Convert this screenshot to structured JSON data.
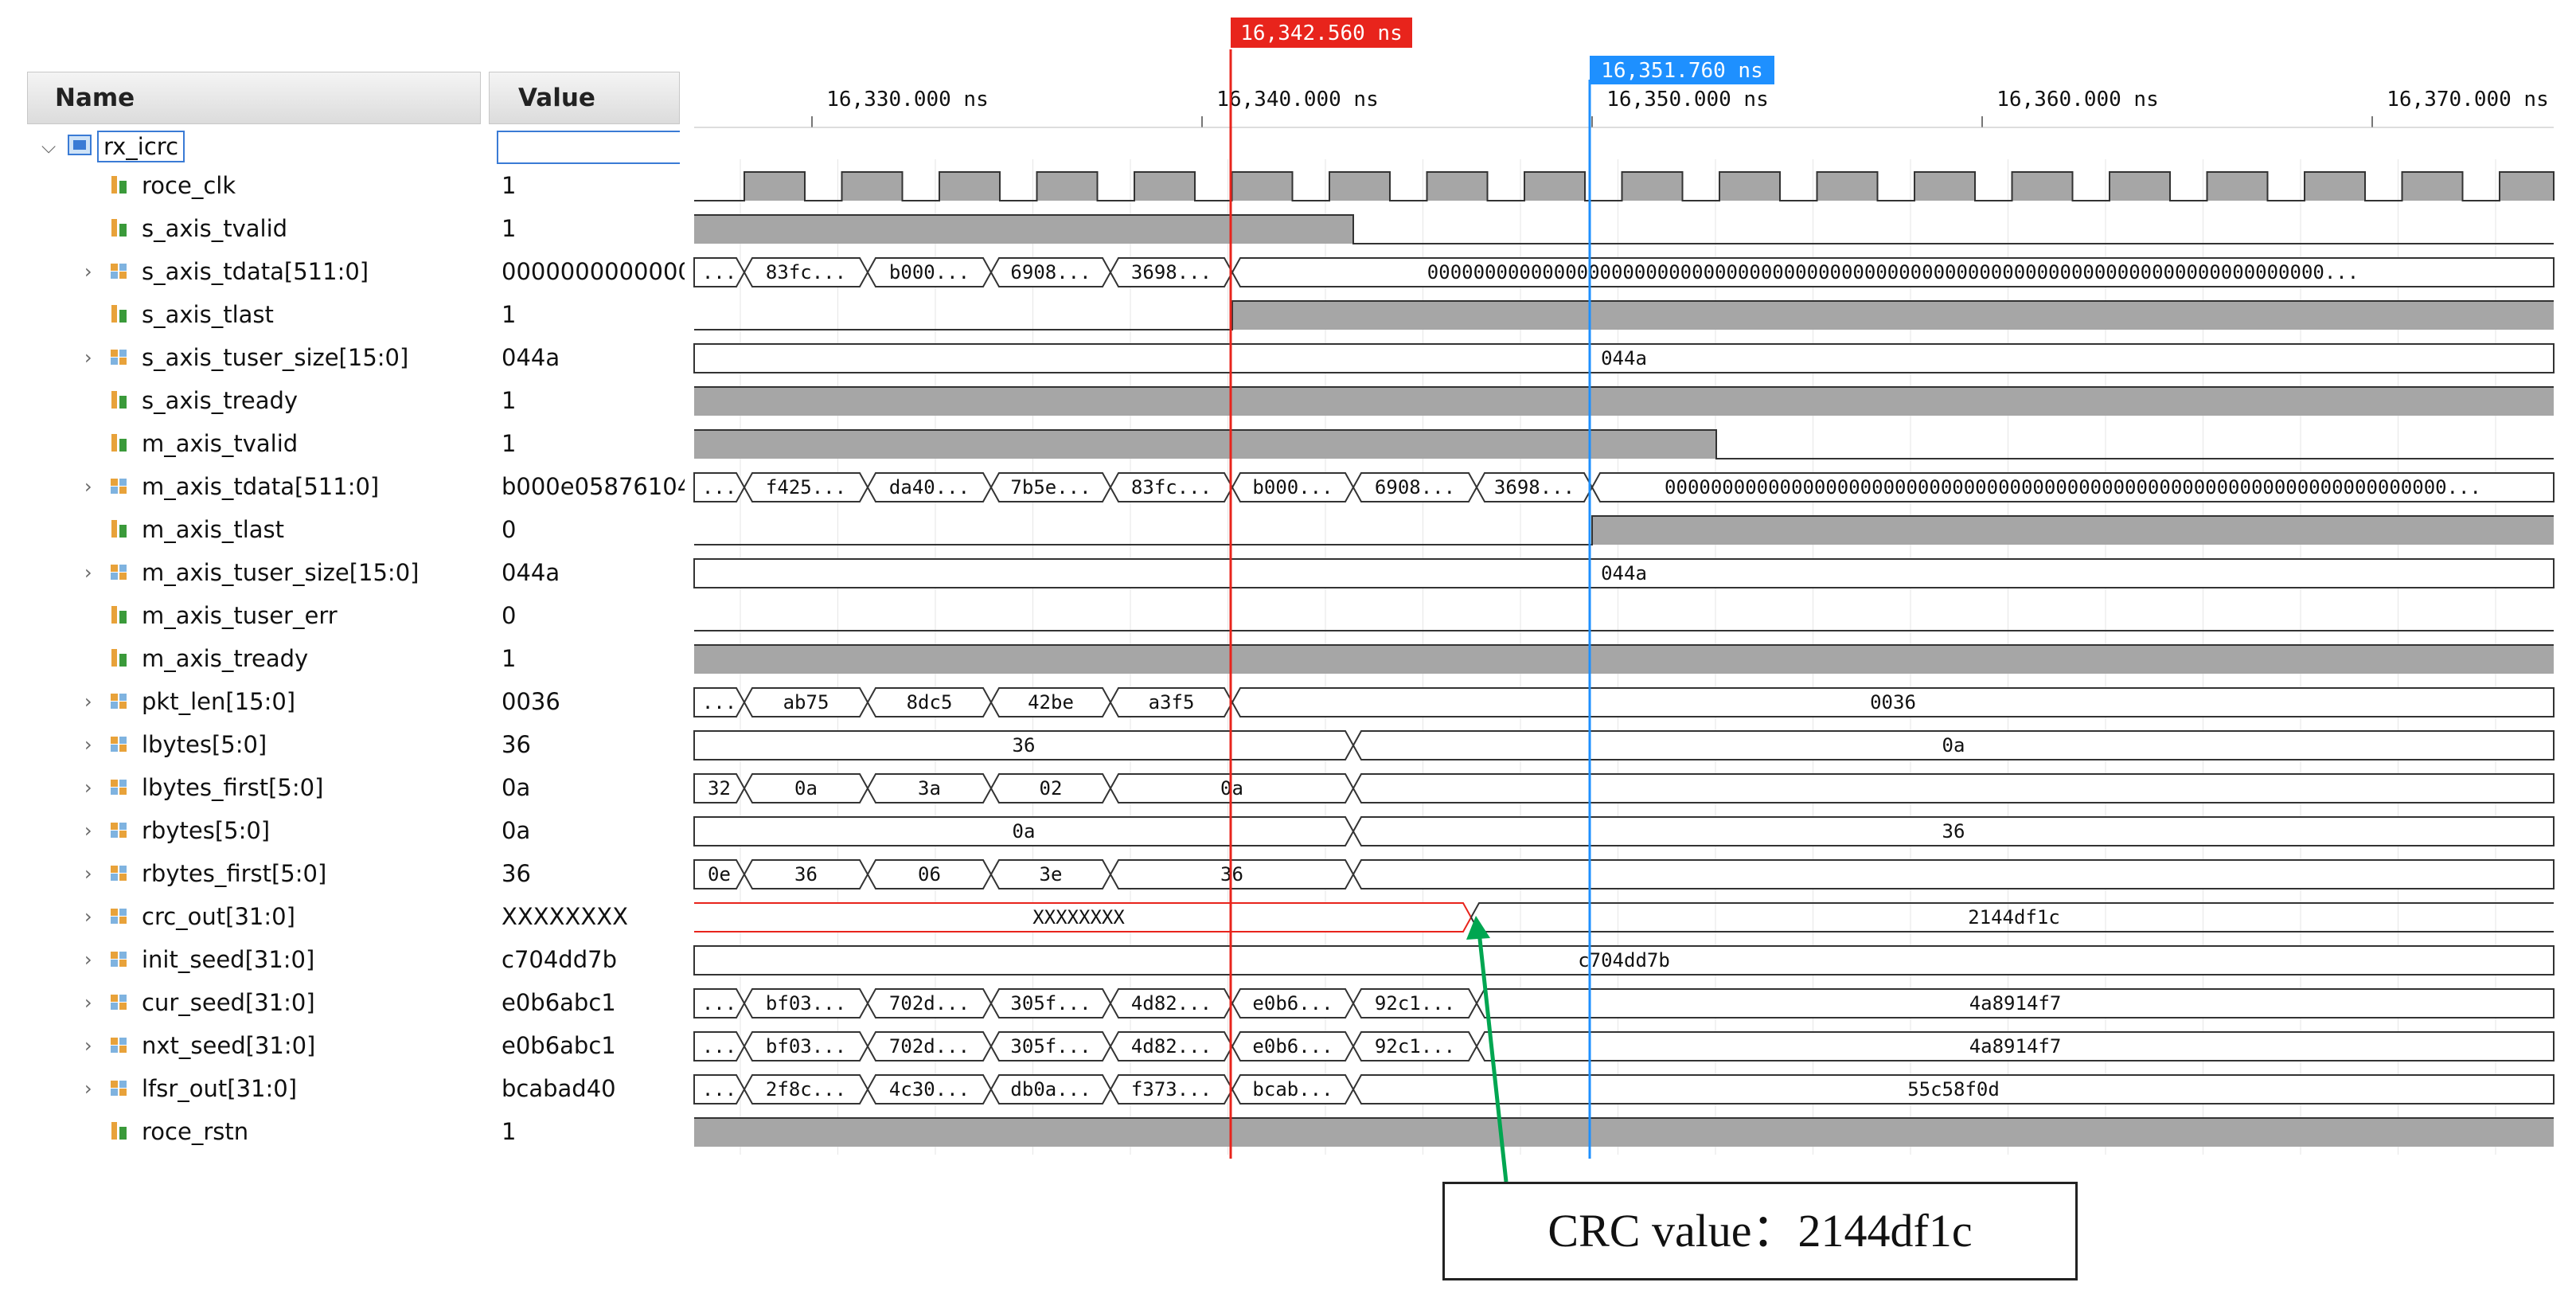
{
  "header": {
    "name_label": "Name",
    "value_label": "Value"
  },
  "scope": {
    "label": "rx_icrc"
  },
  "timeline": {
    "ticks": [
      "16,330.000 ns",
      "16,340.000 ns",
      "16,350.000 ns",
      "16,360.000 ns",
      "16,370.000 ns"
    ],
    "cursor_red": "16,342.560 ns",
    "cursor_blue": "16,351.760 ns",
    "red_color": "#e8241c",
    "blue_color": "#1e90ff"
  },
  "signals": [
    {
      "name": "roce_clk",
      "value": "1",
      "icon": "bit-signal-icon"
    },
    {
      "name": "s_axis_tvalid",
      "value": "1",
      "icon": "bit-signal-icon"
    },
    {
      "name": "s_axis_tdata[511:0]",
      "value": "00000000000000",
      "icon": "bus-signal-icon"
    },
    {
      "name": "s_axis_tlast",
      "value": "1",
      "icon": "bit-signal-icon"
    },
    {
      "name": "s_axis_tuser_size[15:0]",
      "value": "044a",
      "icon": "bus-signal-icon"
    },
    {
      "name": "s_axis_tready",
      "value": "1",
      "icon": "bit-signal-icon"
    },
    {
      "name": "m_axis_tvalid",
      "value": "1",
      "icon": "bit-signal-icon"
    },
    {
      "name": "m_axis_tdata[511:0]",
      "value": "b000e05876104",
      "icon": "bus-signal-icon"
    },
    {
      "name": "m_axis_tlast",
      "value": "0",
      "icon": "bit-signal-icon"
    },
    {
      "name": "m_axis_tuser_size[15:0]",
      "value": "044a",
      "icon": "bus-signal-icon"
    },
    {
      "name": "m_axis_tuser_err",
      "value": "0",
      "icon": "bit-signal-icon"
    },
    {
      "name": "m_axis_tready",
      "value": "1",
      "icon": "bit-signal-icon"
    },
    {
      "name": "pkt_len[15:0]",
      "value": "0036",
      "icon": "bus-signal-icon"
    },
    {
      "name": "lbytes[5:0]",
      "value": "36",
      "icon": "bus-signal-icon"
    },
    {
      "name": "lbytes_first[5:0]",
      "value": "0a",
      "icon": "bus-signal-icon"
    },
    {
      "name": "rbytes[5:0]",
      "value": "0a",
      "icon": "bus-signal-icon"
    },
    {
      "name": "rbytes_first[5:0]",
      "value": "36",
      "icon": "bus-signal-icon"
    },
    {
      "name": "crc_out[31:0]",
      "value": "XXXXXXXX",
      "icon": "bus-signal-icon"
    },
    {
      "name": "init_seed[31:0]",
      "value": "c704dd7b",
      "icon": "bus-signal-icon"
    },
    {
      "name": "cur_seed[31:0]",
      "value": "e0b6abc1",
      "icon": "bus-signal-icon"
    },
    {
      "name": "nxt_seed[31:0]",
      "value": "e0b6abc1",
      "icon": "bus-signal-icon"
    },
    {
      "name": "lfsr_out[31:0]",
      "value": "bcabad40",
      "icon": "bus-signal-icon"
    },
    {
      "name": "roce_rstn",
      "value": "1",
      "icon": "bit-signal-icon"
    }
  ],
  "waves": {
    "s_axis_tdata": [
      "...",
      "83fc...",
      "b000...",
      "6908...",
      "3698...",
      "000000000000000000000000000000000000000000000000000000000000000000000000000000..."
    ],
    "s_axis_tuser_size": [
      "044a"
    ],
    "m_axis_tdata": [
      "...",
      "f425...",
      "da40...",
      "7b5e...",
      "83fc...",
      "b000...",
      "6908...",
      "3698...",
      "00000000000000000000000000000000000000000000000000000000000000000000..."
    ],
    "m_axis_tuser_size": [
      "044a"
    ],
    "pkt_len": [
      "...",
      "ab75",
      "8dc5",
      "42be",
      "a3f5",
      "0036"
    ],
    "lbytes": [
      "36",
      "0a"
    ],
    "lbytes_first": [
      "32",
      "0a",
      "3a",
      "02",
      "0a"
    ],
    "rbytes": [
      "0a",
      "36"
    ],
    "rbytes_first": [
      "0e",
      "36",
      "06",
      "3e",
      "36"
    ],
    "crc_out": [
      "XXXXXXXX",
      "2144df1c"
    ],
    "init_seed": [
      "c704dd7b"
    ],
    "cur_seed": [
      "...",
      "bf03...",
      "702d...",
      "305f...",
      "4d82...",
      "e0b6...",
      "92c1...",
      "4a8914f7"
    ],
    "nxt_seed": [
      "...",
      "bf03...",
      "702d...",
      "305f...",
      "4d82...",
      "e0b6...",
      "92c1...",
      "4a8914f7"
    ],
    "lfsr_out": [
      "...",
      "2f8c...",
      "4c30...",
      "db0a...",
      "f373...",
      "bcab...",
      "55c58f0d"
    ]
  },
  "annotation": {
    "text": "CRC value：2144df1c",
    "arrow_color": "#00a651"
  }
}
